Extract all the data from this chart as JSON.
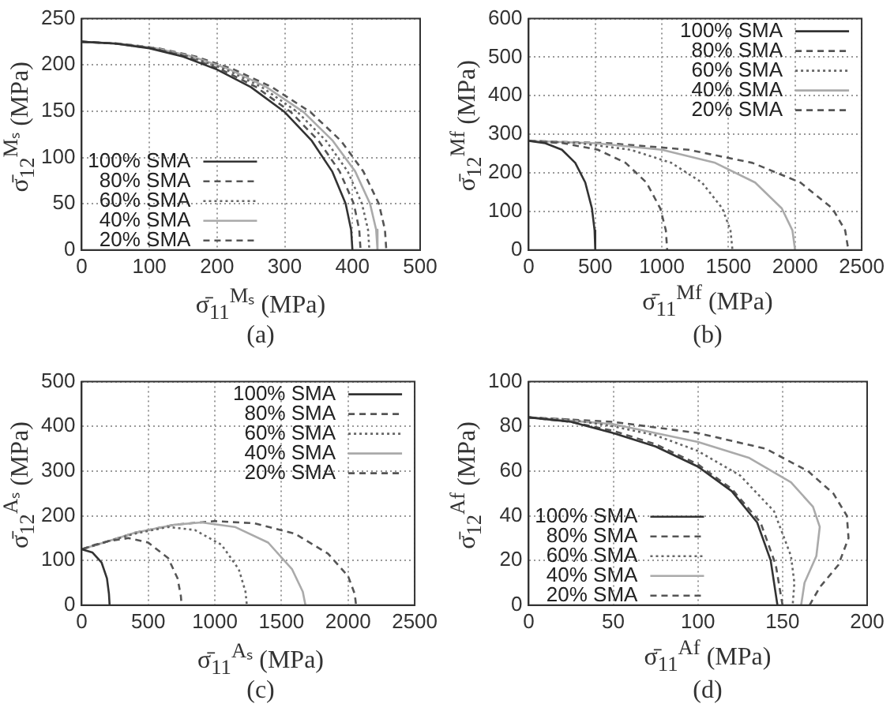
{
  "chart_data": [
    {
      "type": "line",
      "xlabel": "σ̄$_{11}$$^{Mₛ}$ (MPa)",
      "ylabel": "σ̄$_{12}$$^{Mₛ}$ (MPa)",
      "annotations": [
        "(a)"
      ],
      "xlim": [
        0,
        500
      ],
      "ylim": [
        0,
        250
      ],
      "xticks": [
        0,
        100,
        200,
        300,
        400,
        500
      ],
      "yticks": [
        0,
        50,
        100,
        150,
        200,
        250
      ],
      "grid": true,
      "legend": "bottom left",
      "series": [
        {
          "name": "100% SMA",
          "color": "#333333",
          "line_style": "solid",
          "x": [
            0,
            50,
            100,
            150,
            200,
            250,
            300,
            340,
            370,
            390,
            398,
            400
          ],
          "values": [
            225,
            223,
            218,
            209,
            195,
            176,
            149,
            118,
            85,
            50,
            22,
            0
          ]
        },
        {
          "name": "80% SMA",
          "color": "#555555",
          "line_style": "dashed",
          "x": [
            0,
            52,
            103,
            155,
            206,
            258,
            309,
            350,
            381,
            402,
            410,
            412
          ],
          "values": [
            225,
            223,
            218,
            209,
            195,
            176,
            149,
            118,
            85,
            50,
            22,
            0
          ]
        },
        {
          "name": "60% SMA",
          "color": "#666666",
          "line_style": "dotted",
          "x": [
            0,
            53,
            106,
            159,
            213,
            266,
            319,
            361,
            393,
            414,
            423,
            425
          ],
          "values": [
            225,
            223,
            218,
            209,
            195,
            176,
            149,
            118,
            85,
            50,
            22,
            0
          ]
        },
        {
          "name": "40% SMA",
          "color": "#aaaaaa",
          "line_style": "solid",
          "x": [
            0,
            55,
            109,
            164,
            219,
            273,
            328,
            371,
            404,
            426,
            435,
            437
          ],
          "values": [
            225,
            223,
            218,
            209,
            195,
            176,
            149,
            118,
            85,
            50,
            22,
            0
          ]
        },
        {
          "name": "20% SMA",
          "color": "#555555",
          "line_style": "dashed",
          "x": [
            0,
            56,
            113,
            169,
            225,
            281,
            338,
            383,
            416,
            439,
            448,
            450
          ],
          "values": [
            225,
            223,
            218,
            209,
            195,
            176,
            149,
            118,
            85,
            50,
            22,
            0
          ]
        }
      ]
    },
    {
      "type": "line",
      "xlabel": "σ̄$_{11}$$^{Mf}$ (MPa)",
      "ylabel": "σ̄$_{12}$$^{Mf}$ (MPa)",
      "annotations": [
        "(b)"
      ],
      "xlim": [
        0,
        2500
      ],
      "ylim": [
        0,
        600
      ],
      "xticks": [
        0,
        500,
        1000,
        1500,
        2000,
        2500
      ],
      "yticks": [
        0,
        100,
        200,
        300,
        400,
        500,
        600
      ],
      "grid": true,
      "legend": "top right",
      "series": [
        {
          "name": "100% SMA",
          "color": "#333333",
          "line_style": "solid",
          "x": [
            0,
            125,
            250,
            350,
            425,
            475,
            495,
            500
          ],
          "values": [
            283,
            277,
            260,
            226,
            175,
            108,
            51,
            0
          ]
        },
        {
          "name": "80% SMA",
          "color": "#555555",
          "line_style": "dashed",
          "x": [
            0,
            260,
            520,
            728,
            884,
            988,
            1030,
            1040
          ],
          "values": [
            283,
            277,
            260,
            226,
            175,
            108,
            51,
            0
          ]
        },
        {
          "name": "60% SMA",
          "color": "#666666",
          "line_style": "dotted",
          "x": [
            0,
            383,
            765,
            1071,
            1301,
            1454,
            1515,
            1530
          ],
          "values": [
            283,
            277,
            260,
            226,
            175,
            108,
            51,
            0
          ]
        },
        {
          "name": "40% SMA",
          "color": "#aaaaaa",
          "line_style": "solid",
          "x": [
            0,
            500,
            1000,
            1400,
            1700,
            1900,
            1980,
            2000
          ],
          "values": [
            283,
            277,
            260,
            226,
            175,
            108,
            51,
            0
          ]
        },
        {
          "name": "20% SMA",
          "color": "#555555",
          "line_style": "dashed",
          "x": [
            0,
            600,
            1200,
            1680,
            2040,
            2280,
            2376,
            2400
          ],
          "values": [
            283,
            277,
            260,
            226,
            175,
            108,
            51,
            0
          ]
        }
      ]
    },
    {
      "type": "line",
      "xlabel": "σ̄$_{11}$$^{Aₛ}$ (MPa)",
      "ylabel": "σ̄$_{12}$$^{Aₛ}$ (MPa)",
      "annotations": [
        "(c)"
      ],
      "xlim": [
        0,
        2500
      ],
      "ylim": [
        0,
        500
      ],
      "xticks": [
        0,
        500,
        1000,
        1500,
        2000,
        2500
      ],
      "yticks": [
        0,
        100,
        200,
        300,
        400,
        500
      ],
      "grid": true,
      "legend": "top right",
      "series": [
        {
          "name": "100% SMA",
          "color": "#333333",
          "line_style": "solid",
          "x": [
            0,
            80,
            150,
            190,
            205,
            210
          ],
          "values": [
            125,
            118,
            95,
            60,
            25,
            0
          ]
        },
        {
          "name": "80% SMA",
          "color": "#555555",
          "line_style": "dashed",
          "x": [
            0,
            100,
            200,
            350,
            500,
            650,
            720,
            745,
            750
          ],
          "values": [
            125,
            135,
            143,
            150,
            140,
            105,
            60,
            20,
            0
          ]
        },
        {
          "name": "60% SMA",
          "color": "#666666",
          "line_style": "dotted",
          "x": [
            0,
            200,
            400,
            650,
            850,
            1050,
            1180,
            1230,
            1240
          ],
          "values": [
            125,
            143,
            160,
            175,
            168,
            135,
            80,
            30,
            0
          ]
        },
        {
          "name": "40% SMA",
          "color": "#aaaaaa",
          "line_style": "solid",
          "x": [
            0,
            200,
            400,
            700,
            900,
            1150,
            1400,
            1580,
            1660,
            1680
          ],
          "values": [
            125,
            143,
            162,
            180,
            185,
            175,
            140,
            80,
            30,
            0
          ]
        },
        {
          "name": "20% SMA",
          "color": "#555555",
          "line_style": "dashed",
          "x": [
            0,
            200,
            400,
            700,
            1000,
            1300,
            1600,
            1850,
            2000,
            2050,
            2060
          ],
          "values": [
            125,
            143,
            162,
            180,
            188,
            183,
            160,
            115,
            65,
            25,
            0
          ]
        }
      ]
    },
    {
      "type": "line",
      "xlabel": "σ̄$_{11}$$^{Af}$ (MPa)",
      "ylabel": "σ̄$_{12}$$^{Af}$ (MPa)",
      "annotations": [
        "(d)"
      ],
      "xlim": [
        0,
        200
      ],
      "ylim": [
        0,
        100
      ],
      "xticks": [
        0,
        50,
        100,
        150,
        200
      ],
      "yticks": [
        0,
        20,
        40,
        60,
        80,
        100
      ],
      "grid": true,
      "legend": "bottom left",
      "series": [
        {
          "name": "100% SMA",
          "color": "#333333",
          "line_style": "solid",
          "x": [
            0,
            25,
            50,
            75,
            100,
            120,
            135,
            143,
            147
          ],
          "values": [
            84,
            82,
            77,
            71,
            62,
            51,
            37,
            20,
            0
          ]
        },
        {
          "name": "80% SMA",
          "color": "#555555",
          "line_style": "dashed",
          "x": [
            0,
            25,
            50,
            75,
            100,
            120,
            137,
            146,
            150
          ],
          "values": [
            84,
            82,
            78,
            72,
            63,
            52,
            37,
            18,
            0
          ]
        },
        {
          "name": "60% SMA",
          "color": "#666666",
          "line_style": "dotted",
          "x": [
            0,
            25,
            50,
            75,
            100,
            125,
            145,
            155,
            157,
            156
          ],
          "values": [
            84,
            83,
            80,
            76,
            69,
            58,
            42,
            22,
            10,
            0
          ]
        },
        {
          "name": "40% SMA",
          "color": "#aaaaaa",
          "line_style": "solid",
          "x": [
            0,
            50,
            100,
            130,
            155,
            168,
            172,
            170,
            163,
            161
          ],
          "values": [
            84,
            81,
            73,
            66,
            55,
            44,
            35,
            22,
            10,
            0
          ]
        },
        {
          "name": "20% SMA",
          "color": "#555555",
          "line_style": "dashed",
          "x": [
            0,
            50,
            100,
            140,
            165,
            180,
            188,
            189,
            183,
            172,
            166
          ],
          "values": [
            84,
            82,
            77,
            70,
            60,
            50,
            40,
            30,
            18,
            8,
            0
          ]
        }
      ]
    }
  ]
}
